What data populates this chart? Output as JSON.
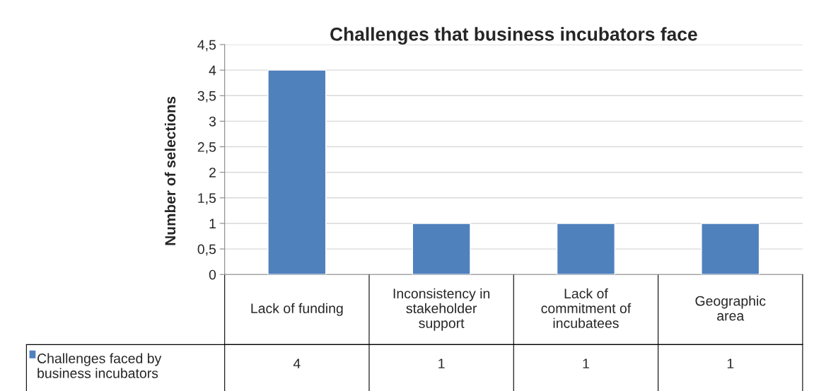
{
  "chart_data": {
    "type": "bar",
    "title": "Challenges that business incubators face",
    "ylabel": "Number of selections",
    "categories": [
      "Lack of funding",
      "Inconsistency in\nstakeholder\nsupport",
      "Lack of\ncommitment of\nincubatees",
      "Geographic\narea"
    ],
    "series": [
      {
        "name": "Challenges faced by\nbusiness incubators",
        "color": "#4f81bd",
        "values": [
          4,
          1,
          1,
          1
        ]
      }
    ],
    "ylim": [
      0,
      4.5
    ],
    "yticks": [
      0,
      {
        "value": 0.5,
        "label": "0,5"
      },
      1,
      {
        "value": 1.5,
        "label": "1,5"
      },
      2,
      {
        "value": 2.5,
        "label": "2,5"
      },
      3,
      {
        "value": 3.5,
        "label": "3,5"
      },
      4,
      {
        "value": 4.5,
        "label": "4,5"
      }
    ],
    "grid": "y",
    "legend": "bottom",
    "data_labels": true
  }
}
